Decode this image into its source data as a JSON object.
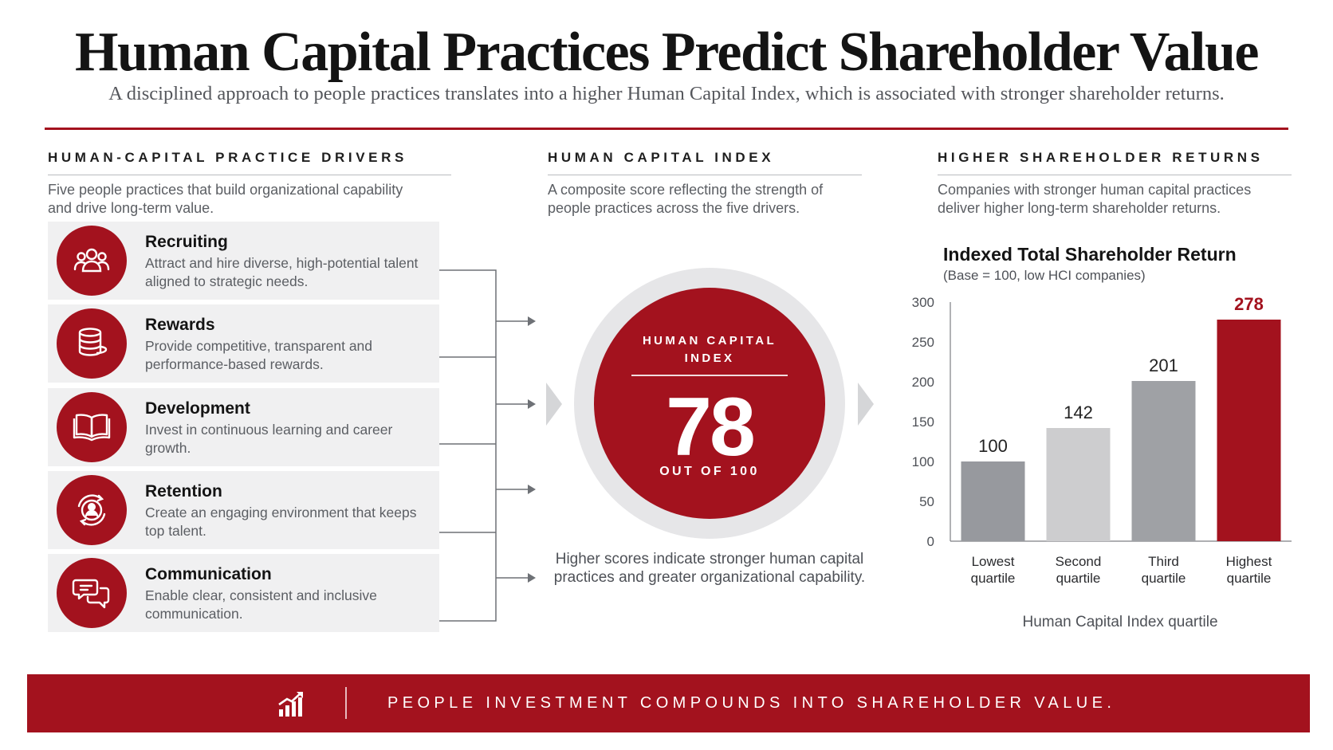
{
  "title": "Human Capital Practices Predict Shareholder Value",
  "subtitle": "A disciplined approach to people practices translates into a higher Human Capital Index, which is associated with stronger shareholder returns.",
  "drivers_section": {
    "heading": "HUMAN-CAPITAL PRACTICE DRIVERS",
    "description": "Five people practices that build organizational capability and drive long-term value.",
    "items": [
      {
        "name": "Recruiting",
        "description": "Attract and hire diverse, high-potential talent aligned to strategic needs.",
        "icon": "people-group-icon"
      },
      {
        "name": "Rewards",
        "description": "Provide competitive, transparent and performance-based rewards.",
        "icon": "coin-stack-icon"
      },
      {
        "name": "Development",
        "description": "Invest in continuous learning and career growth.",
        "icon": "open-book-icon"
      },
      {
        "name": "Retention",
        "description": "Create an engaging environment that keeps top talent.",
        "icon": "person-cycle-icon"
      },
      {
        "name": "Communication",
        "description": "Enable clear, consistent and inclusive communication.",
        "icon": "speech-bubbles-icon"
      }
    ]
  },
  "index_section": {
    "heading": "HUMAN CAPITAL INDEX",
    "description": "A composite score reflecting the strength of people practices across the five drivers.",
    "label": "HUMAN CAPITAL INDEX",
    "value": "78",
    "out_of": "OUT OF 100",
    "note": "Higher scores indicate stronger human capital practices and greater organizational capability."
  },
  "returns_section": {
    "heading": "HIGHER SHAREHOLDER RETURNS",
    "description": "Companies with stronger human capital practices deliver higher long-term shareholder returns."
  },
  "chart_data": {
    "type": "bar",
    "title": "Indexed Total Shareholder Return",
    "subtitle": "(Base = 100, low HCI companies)",
    "xlabel": "Human Capital Index quartile",
    "ylabel": "",
    "categories": [
      [
        "Lowest",
        "quartile"
      ],
      [
        "Second",
        "quartile"
      ],
      [
        "Third",
        "quartile"
      ],
      [
        "Highest",
        "quartile"
      ]
    ],
    "values": [
      100,
      142,
      201,
      278
    ],
    "ylim": [
      0,
      300
    ],
    "yticks": [
      0,
      50,
      100,
      150,
      200,
      250,
      300
    ],
    "colors": [
      "#97999e",
      "#cdcdcf",
      "#9fa1a5",
      "#a3121e"
    ],
    "label_colors": [
      "#222222",
      "#222222",
      "#222222",
      "#a3121e"
    ],
    "grid": false
  },
  "banner": {
    "text": "PEOPLE INVESTMENT COMPOUNDS INTO SHAREHOLDER VALUE.",
    "icon": "growth-chart-icon"
  },
  "colors": {
    "accent": "#a3121e",
    "text": "#141414",
    "muted": "#5b5e63",
    "panel": "#f0f0f1"
  }
}
